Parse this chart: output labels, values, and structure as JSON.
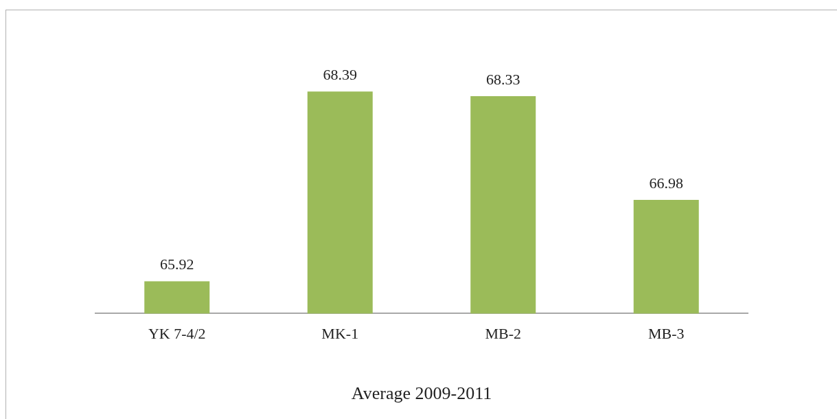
{
  "chart_data": {
    "type": "bar",
    "title": "Average 2009-2011",
    "categories": [
      "YK 7-4/2",
      "MK-1",
      "MB-2",
      "MB-3"
    ],
    "values": [
      65.92,
      68.39,
      68.33,
      66.98
    ],
    "color": "#9bbb59",
    "data_labels": true,
    "grid": false,
    "legend": false
  }
}
